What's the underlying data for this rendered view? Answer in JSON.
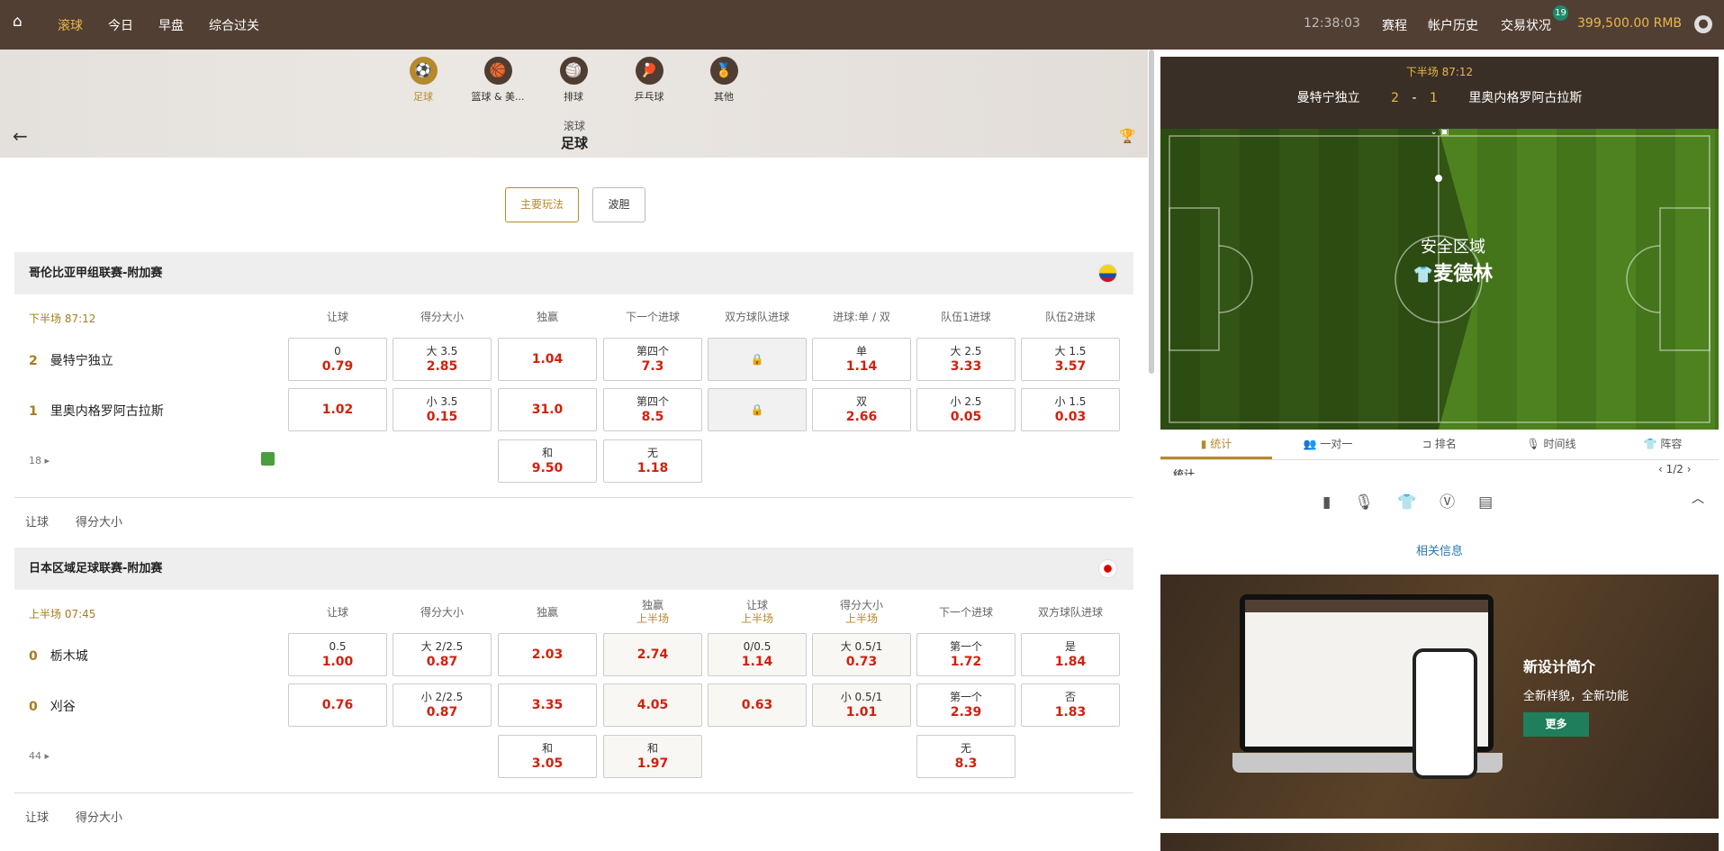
{
  "header": {
    "nav": [
      "滚球",
      "今日",
      "早盘",
      "综合过关"
    ],
    "time": "12:38:03",
    "links": [
      "赛程",
      "帐户历史",
      "交易状况"
    ],
    "badge": "19",
    "balance": "399,500.00 RMB"
  },
  "sports": [
    {
      "label": "足球",
      "icon": "⚽"
    },
    {
      "label": "篮球 & 美...",
      "icon": "🏀"
    },
    {
      "label": "排球",
      "icon": "🏐"
    },
    {
      "label": "乒乓球",
      "icon": "🏓"
    },
    {
      "label": "其他",
      "icon": "🏅"
    }
  ],
  "page": {
    "subtitle": "滚球",
    "title": "足球"
  },
  "modes": [
    "主要玩法",
    "波胆"
  ],
  "leagues": [
    {
      "name": "哥伦比亚甲组联赛-附加赛",
      "flag": "colombia",
      "status": "下半场  87:12",
      "columns": [
        [
          "让球",
          ""
        ],
        [
          "得分大小",
          ""
        ],
        [
          "独赢",
          ""
        ],
        [
          "下一个进球",
          ""
        ],
        [
          "双方球队进球",
          ""
        ],
        [
          "进球:单 / 双",
          ""
        ],
        [
          "队伍1进球",
          ""
        ],
        [
          "队伍2进球",
          ""
        ]
      ],
      "teams": [
        {
          "score": "2",
          "name": "曼特宁独立"
        },
        {
          "score": "1",
          "name": "里奥内格罗阿古拉斯"
        }
      ],
      "rows": [
        [
          [
            "0",
            "0.79"
          ],
          [
            "大 3.5",
            "2.85"
          ],
          [
            "",
            "1.04"
          ],
          [
            "第四个",
            "7.3"
          ],
          "lock",
          [
            "单",
            "1.14"
          ],
          [
            "大 2.5",
            "3.33"
          ],
          [
            "大 1.5",
            "3.57"
          ]
        ],
        [
          [
            "",
            "1.02"
          ],
          [
            "小 3.5",
            "0.15"
          ],
          [
            "",
            "31.0"
          ],
          [
            "第四个",
            "8.5"
          ],
          "lock",
          [
            "双",
            "2.66"
          ],
          [
            "小 2.5",
            "0.05"
          ],
          [
            "小 1.5",
            "0.03"
          ]
        ],
        [
          null,
          null,
          [
            "和",
            "9.50"
          ],
          [
            "无",
            "1.18"
          ],
          null,
          null,
          null,
          null
        ]
      ],
      "more": "18",
      "tabs": [
        "让球",
        "得分大小"
      ]
    },
    {
      "name": "日本区域足球联赛-附加赛",
      "flag": "japan",
      "status": "上半场  07:45",
      "columns": [
        [
          "让球",
          ""
        ],
        [
          "得分大小",
          ""
        ],
        [
          "独赢",
          ""
        ],
        [
          "独赢",
          "上半场"
        ],
        [
          "让球",
          "上半场"
        ],
        [
          "得分大小",
          "上半场"
        ],
        [
          "下一个进球",
          ""
        ],
        [
          "双方球队进球",
          ""
        ]
      ],
      "teams": [
        {
          "score": "0",
          "name": "栃木城"
        },
        {
          "score": "0",
          "name": "刈谷"
        }
      ],
      "rows": [
        [
          [
            "0.5",
            "1.00"
          ],
          [
            "大 2/2.5",
            "0.87"
          ],
          [
            "",
            "2.03"
          ],
          [
            "",
            "2.74"
          ],
          [
            "0/0.5",
            "1.14"
          ],
          [
            "大 0.5/1",
            "0.73"
          ],
          [
            "第一个",
            "1.72"
          ],
          [
            "是",
            "1.84"
          ]
        ],
        [
          [
            "",
            "0.76"
          ],
          [
            "小 2/2.5",
            "0.87"
          ],
          [
            "",
            "3.35"
          ],
          [
            "",
            "4.05"
          ],
          [
            "",
            "0.63"
          ],
          [
            "小 0.5/1",
            "1.01"
          ],
          [
            "第一个",
            "2.39"
          ],
          [
            "否",
            "1.83"
          ]
        ],
        [
          null,
          null,
          [
            "和",
            "3.05"
          ],
          [
            "和",
            "1.97"
          ],
          null,
          null,
          [
            "无",
            "8.3"
          ],
          null
        ]
      ],
      "alt_cols": [
        3,
        4,
        5
      ],
      "more": "44",
      "tabs": [
        "让球",
        "得分大小"
      ]
    }
  ],
  "match": {
    "status": "下半场  87:12",
    "home": "曼特宁独立",
    "away": "里奥内格罗阿古拉斯",
    "home_score": "2",
    "sep": "-",
    "away_score": "1",
    "zone": "安全区域",
    "zone_team": "麦德林"
  },
  "stats_tabs": [
    "统计",
    "一对一",
    "排名",
    "时间线",
    "阵容"
  ],
  "stats": {
    "label": "统计",
    "page": "1/2",
    "related": "相关信息"
  },
  "promo": {
    "title": "新设计简介",
    "subtitle": "全新样貌，全新功能",
    "button": "更多"
  },
  "colors": {
    "header": "#523f33",
    "accent": "#b58a2c",
    "odds": "#d2200d",
    "promo_button": "#1f7f5c"
  }
}
